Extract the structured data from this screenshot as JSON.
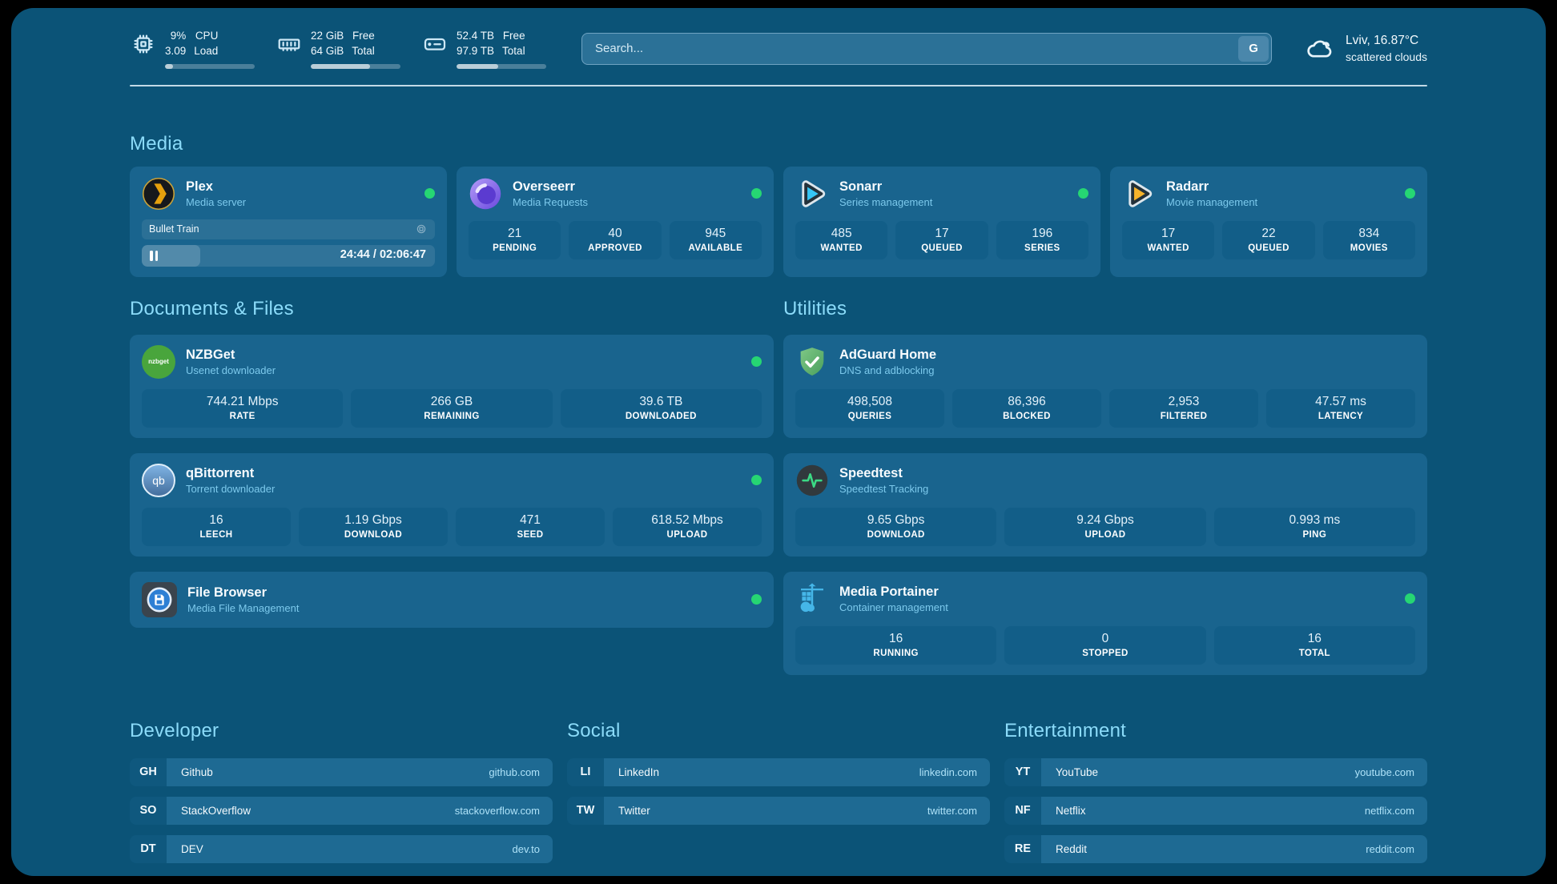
{
  "colors": {
    "panel-bg": "#0b5377",
    "card-bg": "#19648e",
    "tile-bg": "#125e88",
    "accent": "#8bdbf9",
    "subtitle": "#7cc9ec",
    "online": "#26d673",
    "abbr-bg": "#0f587e",
    "row-bg": "#1e6a93",
    "host": "#aee2f8"
  },
  "header": {
    "system": [
      {
        "label": "cpu",
        "values": [
          "9%",
          "3.09"
        ],
        "captions": [
          "CPU",
          "Load"
        ],
        "progress_pct": 9
      },
      {
        "label": "memory",
        "values": [
          "22 GiB",
          "64 GiB"
        ],
        "captions": [
          "Free",
          "Total"
        ],
        "progress_pct": 66
      },
      {
        "label": "disk",
        "values": [
          "52.4 TB",
          "97.9 TB"
        ],
        "captions": [
          "Free",
          "Total"
        ],
        "progress_pct": 46
      }
    ],
    "search": {
      "placeholder": "Search...",
      "engine_button": "G"
    },
    "weather": {
      "line1": "Lviv, 16.87°C",
      "line2": "scattered clouds"
    }
  },
  "media": {
    "title": "Media",
    "plex": {
      "name": "Plex",
      "subtitle": "Media server",
      "now_playing": "Bullet Train",
      "time": "24:44 / 02:06:47",
      "progress_pct": 20
    },
    "overseerr": {
      "name": "Overseerr",
      "subtitle": "Media Requests",
      "stats": [
        {
          "value": "21",
          "label": "PENDING"
        },
        {
          "value": "40",
          "label": "APPROVED"
        },
        {
          "value": "945",
          "label": "AVAILABLE"
        }
      ]
    },
    "sonarr": {
      "name": "Sonarr",
      "subtitle": "Series management",
      "stats": [
        {
          "value": "485",
          "label": "WANTED"
        },
        {
          "value": "17",
          "label": "QUEUED"
        },
        {
          "value": "196",
          "label": "SERIES"
        }
      ]
    },
    "radarr": {
      "name": "Radarr",
      "subtitle": "Movie management",
      "stats": [
        {
          "value": "17",
          "label": "WANTED"
        },
        {
          "value": "22",
          "label": "QUEUED"
        },
        {
          "value": "834",
          "label": "MOVIES"
        }
      ]
    }
  },
  "documents": {
    "title": "Documents & Files",
    "nzbget": {
      "name": "NZBGet",
      "subtitle": "Usenet downloader",
      "icon_text": "nzbget",
      "stats": [
        {
          "value": "744.21 Mbps",
          "label": "RATE"
        },
        {
          "value": "266 GB",
          "label": "REMAINING"
        },
        {
          "value": "39.6 TB",
          "label": "DOWNLOADED"
        }
      ]
    },
    "qbittorrent": {
      "name": "qBittorrent",
      "subtitle": "Torrent downloader",
      "icon_text": "qb",
      "stats": [
        {
          "value": "16",
          "label": "LEECH"
        },
        {
          "value": "1.19 Gbps",
          "label": "DOWNLOAD"
        },
        {
          "value": "471",
          "label": "SEED"
        },
        {
          "value": "618.52 Mbps",
          "label": "UPLOAD"
        }
      ]
    },
    "filebrowser": {
      "name": "File Browser",
      "subtitle": "Media File Management"
    }
  },
  "utilities": {
    "title": "Utilities",
    "adguard": {
      "name": "AdGuard Home",
      "subtitle": "DNS and adblocking",
      "stats": [
        {
          "value": "498,508",
          "label": "QUERIES"
        },
        {
          "value": "86,396",
          "label": "BLOCKED"
        },
        {
          "value": "2,953",
          "label": "FILTERED"
        },
        {
          "value": "47.57 ms",
          "label": "LATENCY"
        }
      ]
    },
    "speedtest": {
      "name": "Speedtest",
      "subtitle": "Speedtest Tracking",
      "stats": [
        {
          "value": "9.65 Gbps",
          "label": "DOWNLOAD"
        },
        {
          "value": "9.24 Gbps",
          "label": "UPLOAD"
        },
        {
          "value": "0.993 ms",
          "label": "PING"
        }
      ]
    },
    "portainer": {
      "name": "Media Portainer",
      "subtitle": "Container management",
      "stats": [
        {
          "value": "16",
          "label": "RUNNING"
        },
        {
          "value": "0",
          "label": "STOPPED"
        },
        {
          "value": "16",
          "label": "TOTAL"
        }
      ]
    }
  },
  "bookmarks": {
    "developer": {
      "title": "Developer",
      "items": [
        {
          "abbr": "GH",
          "name": "Github",
          "host": "github.com"
        },
        {
          "abbr": "SO",
          "name": "StackOverflow",
          "host": "stackoverflow.com"
        },
        {
          "abbr": "DT",
          "name": "DEV",
          "host": "dev.to"
        }
      ]
    },
    "social": {
      "title": "Social",
      "items": [
        {
          "abbr": "LI",
          "name": "LinkedIn",
          "host": "linkedin.com"
        },
        {
          "abbr": "TW",
          "name": "Twitter",
          "host": "twitter.com"
        }
      ]
    },
    "entertainment": {
      "title": "Entertainment",
      "items": [
        {
          "abbr": "YT",
          "name": "YouTube",
          "host": "youtube.com"
        },
        {
          "abbr": "NF",
          "name": "Netflix",
          "host": "netflix.com"
        },
        {
          "abbr": "RE",
          "name": "Reddit",
          "host": "reddit.com"
        }
      ]
    }
  }
}
